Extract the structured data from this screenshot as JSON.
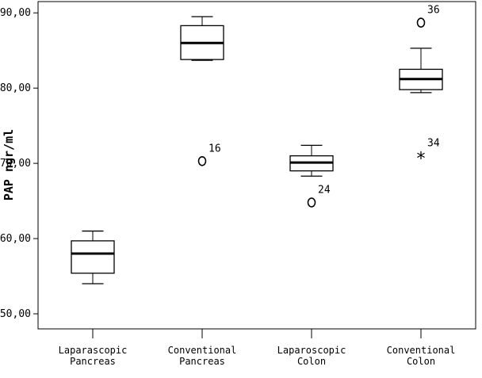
{
  "chart_data": {
    "type": "boxplot",
    "title": "",
    "xlabel": "",
    "ylabel": "PAP ngr/ml",
    "ylim": [
      48.0,
      91.5
    ],
    "yticks": [
      "50,00",
      "60,00",
      "70,00",
      "80,00",
      "90,00"
    ],
    "ytick_values": [
      50,
      60,
      70,
      80,
      90
    ],
    "grid": false,
    "categories": [
      [
        "Laparascopic",
        "Pancreas"
      ],
      [
        "Conventional",
        "Pancreas"
      ],
      [
        "Laparoscopic",
        "Colon"
      ],
      [
        "Conventional",
        "Colon"
      ]
    ],
    "boxes": [
      {
        "min": 54.0,
        "q1": 55.4,
        "median": 58.0,
        "q3": 59.7,
        "max": 61.0,
        "outliers": []
      },
      {
        "min": 83.7,
        "q1": 83.8,
        "median": 86.0,
        "q3": 88.3,
        "max": 89.5,
        "outliers": [
          {
            "value": 70.3,
            "label": "16",
            "marker": "circle"
          }
        ]
      },
      {
        "min": 68.3,
        "q1": 69.0,
        "median": 70.1,
        "q3": 71.0,
        "max": 72.4,
        "outliers": [
          {
            "value": 64.8,
            "label": "24",
            "marker": "circle"
          }
        ]
      },
      {
        "min": 79.4,
        "q1": 79.8,
        "median": 81.2,
        "q3": 82.5,
        "max": 85.3,
        "outliers": [
          {
            "value": 88.7,
            "label": "36",
            "marker": "circle"
          },
          {
            "value": 71.0,
            "label": "34",
            "marker": "star"
          }
        ]
      }
    ]
  }
}
